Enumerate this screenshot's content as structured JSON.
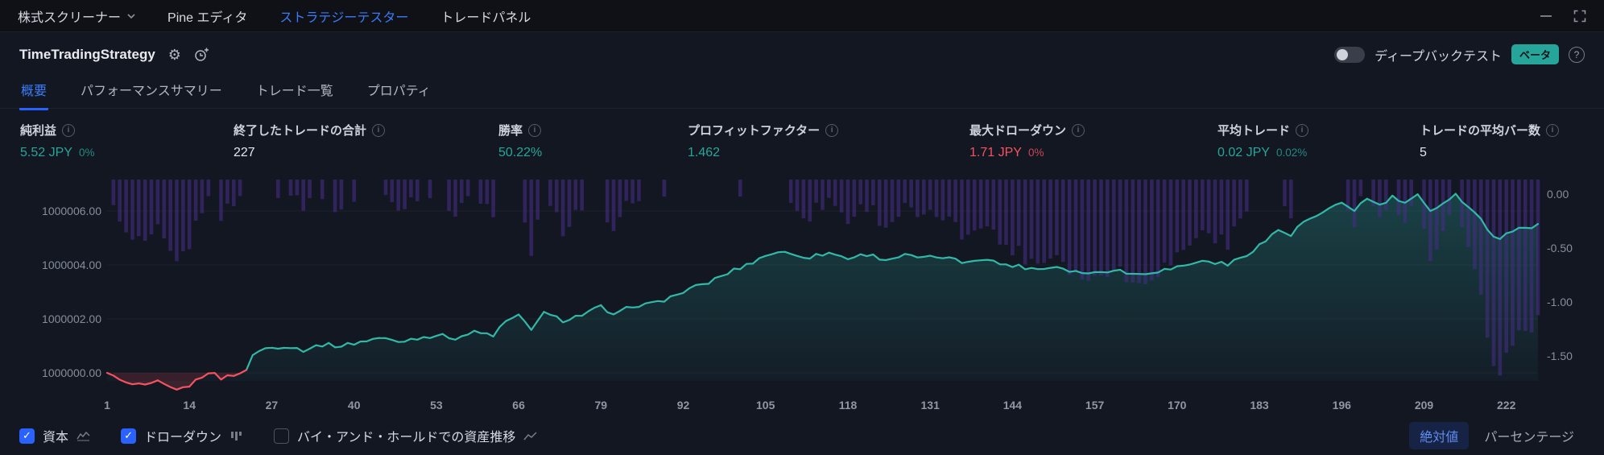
{
  "topbar": {
    "tabs": [
      {
        "label": "株式スクリーナー",
        "chevron": true,
        "active": false
      },
      {
        "label": "Pine エディタ",
        "chevron": false,
        "active": false
      },
      {
        "label": "ストラテジーテスター",
        "chevron": false,
        "active": true
      },
      {
        "label": "トレードパネル",
        "chevron": false,
        "active": false
      }
    ]
  },
  "header": {
    "strategy_name": "TimeTradingStrategy",
    "deep_backtest": {
      "label": "ディープバックテスト",
      "enabled": false,
      "beta_badge": "ベータ"
    }
  },
  "report_tabs": [
    {
      "label": "概要",
      "active": true
    },
    {
      "label": "パフォーマンスサマリー",
      "active": false
    },
    {
      "label": "トレード一覧",
      "active": false
    },
    {
      "label": "プロパティ",
      "active": false
    }
  ],
  "stats": [
    {
      "label": "純利益",
      "value": "5.52 JPY",
      "sub": "0%",
      "tone": "positive"
    },
    {
      "label": "終了したトレードの合計",
      "value": "227",
      "sub": "",
      "tone": "neutral"
    },
    {
      "label": "勝率",
      "value": "50.22%",
      "sub": "",
      "tone": "positive"
    },
    {
      "label": "プロフィットファクター",
      "value": "1.462",
      "sub": "",
      "tone": "positive"
    },
    {
      "label": "最大ドローダウン",
      "value": "1.71 JPY",
      "sub": "0%",
      "tone": "negative"
    },
    {
      "label": "平均トレード",
      "value": "0.02 JPY",
      "sub": "0.02%",
      "tone": "positive"
    },
    {
      "label": "トレードの平均バー数",
      "value": "5",
      "sub": "",
      "tone": "neutral"
    }
  ],
  "chart_data": {
    "type": "area+bar",
    "n_trades": 227,
    "initial_capital": 1000000,
    "final_equity": 1000005.52,
    "max_drawdown": -1.71,
    "x_ticks": [
      1,
      14,
      27,
      40,
      53,
      66,
      79,
      92,
      105,
      118,
      131,
      144,
      157,
      170,
      183,
      196,
      209,
      222
    ],
    "left_axis_ticks": [
      1000006,
      1000004,
      1000002,
      1000000
    ],
    "left_axis_tick_labels": [
      "1000006.00",
      "1000004.00",
      "1000002.00",
      "1000000.00"
    ],
    "right_axis_ticks": [
      0,
      -0.5,
      -1,
      -1.5
    ],
    "right_axis_tick_labels": [
      "0.00",
      "-0.50",
      "-1.00",
      "-1.50"
    ],
    "series": [
      {
        "name": "資本",
        "type": "area",
        "color": "#31b8a6",
        "below_initial_color": "#f7525f",
        "equity_keypoints": [
          [
            1,
            1000000
          ],
          [
            2,
            999999.85
          ],
          [
            4,
            999999.6
          ],
          [
            7,
            999999.5
          ],
          [
            9,
            999999.65
          ],
          [
            11,
            999999.45
          ],
          [
            13,
            999999.4
          ],
          [
            15,
            999999.7
          ],
          [
            17,
            1000000.05
          ],
          [
            19,
            999999.8
          ],
          [
            21,
            999999.95
          ],
          [
            23,
            1000000.05
          ],
          [
            24,
            1000000.7
          ],
          [
            26,
            1000000.9
          ],
          [
            29,
            1000001.0
          ],
          [
            32,
            1000000.85
          ],
          [
            35,
            1000001.05
          ],
          [
            38,
            1000001.0
          ],
          [
            41,
            1000001.15
          ],
          [
            44,
            1000001.3
          ],
          [
            47,
            1000001.15
          ],
          [
            50,
            1000001.3
          ],
          [
            53,
            1000001.4
          ],
          [
            56,
            1000001.3
          ],
          [
            59,
            1000001.5
          ],
          [
            62,
            1000001.4
          ],
          [
            64,
            1000001.9
          ],
          [
            66,
            1000002.1
          ],
          [
            68,
            1000001.65
          ],
          [
            70,
            1000002.2
          ],
          [
            73,
            1000001.95
          ],
          [
            76,
            1000002.15
          ],
          [
            79,
            1000002.45
          ],
          [
            81,
            1000002.1
          ],
          [
            84,
            1000002.5
          ],
          [
            87,
            1000002.55
          ],
          [
            90,
            1000002.8
          ],
          [
            93,
            1000003.1
          ],
          [
            96,
            1000003.35
          ],
          [
            99,
            1000003.7
          ],
          [
            102,
            1000004.0
          ],
          [
            105,
            1000004.35
          ],
          [
            107,
            1000004.5
          ],
          [
            109,
            1000004.4
          ],
          [
            112,
            1000004.3
          ],
          [
            115,
            1000004.45
          ],
          [
            118,
            1000004.25
          ],
          [
            121,
            1000004.4
          ],
          [
            124,
            1000004.2
          ],
          [
            127,
            1000004.35
          ],
          [
            130,
            1000004.25
          ],
          [
            133,
            1000004.3
          ],
          [
            136,
            1000004.1
          ],
          [
            139,
            1000004.25
          ],
          [
            142,
            1000004.05
          ],
          [
            145,
            1000003.95
          ],
          [
            148,
            1000003.85
          ],
          [
            151,
            1000003.95
          ],
          [
            154,
            1000003.75
          ],
          [
            157,
            1000003.7
          ],
          [
            160,
            1000003.85
          ],
          [
            163,
            1000003.65
          ],
          [
            166,
            1000003.75
          ],
          [
            169,
            1000003.85
          ],
          [
            172,
            1000004.05
          ],
          [
            175,
            1000004.15
          ],
          [
            178,
            1000004.0
          ],
          [
            181,
            1000004.4
          ],
          [
            184,
            1000004.9
          ],
          [
            186,
            1000005.3
          ],
          [
            188,
            1000005.1
          ],
          [
            190,
            1000005.6
          ],
          [
            193,
            1000005.9
          ],
          [
            196,
            1000006.3
          ],
          [
            198,
            1000006.05
          ],
          [
            200,
            1000006.45
          ],
          [
            202,
            1000006.2
          ],
          [
            204,
            1000006.5
          ],
          [
            206,
            1000006.3
          ],
          [
            208,
            1000006.55
          ],
          [
            210,
            1000005.95
          ],
          [
            212,
            1000006.35
          ],
          [
            214,
            1000006.6
          ],
          [
            216,
            1000006.2
          ],
          [
            218,
            1000005.7
          ],
          [
            220,
            1000005.0
          ],
          [
            221,
            1000004.9
          ],
          [
            222,
            1000005.15
          ],
          [
            224,
            1000005.45
          ],
          [
            226,
            1000005.3
          ],
          [
            227,
            1000005.52
          ]
        ]
      },
      {
        "name": "ドローダウン",
        "type": "bar",
        "color": "#462c86",
        "derivation": "equity minus running maximum"
      }
    ]
  },
  "footer": {
    "legend": [
      {
        "label": "資本",
        "checked": true,
        "icon": "equity-curve-icon"
      },
      {
        "label": "ドローダウン",
        "checked": true,
        "icon": "drawdown-bars-icon"
      },
      {
        "label": "バイ・アンド・ホールドでの資産推移",
        "checked": false,
        "icon": "buy-hold-line-icon"
      }
    ],
    "mode_buttons": [
      {
        "label": "絶対値",
        "active": true
      },
      {
        "label": "パーセンテージ",
        "active": false
      }
    ]
  },
  "icons": {
    "info": "i",
    "help": "?",
    "gear": "⚙",
    "check": "✓"
  },
  "colors": {
    "accent_blue": "#2962ff",
    "positive_teal": "#26a69a",
    "negative_red": "#f7525f",
    "drawdown_purple": "#462c86",
    "beta_badge": "#26a69a"
  }
}
